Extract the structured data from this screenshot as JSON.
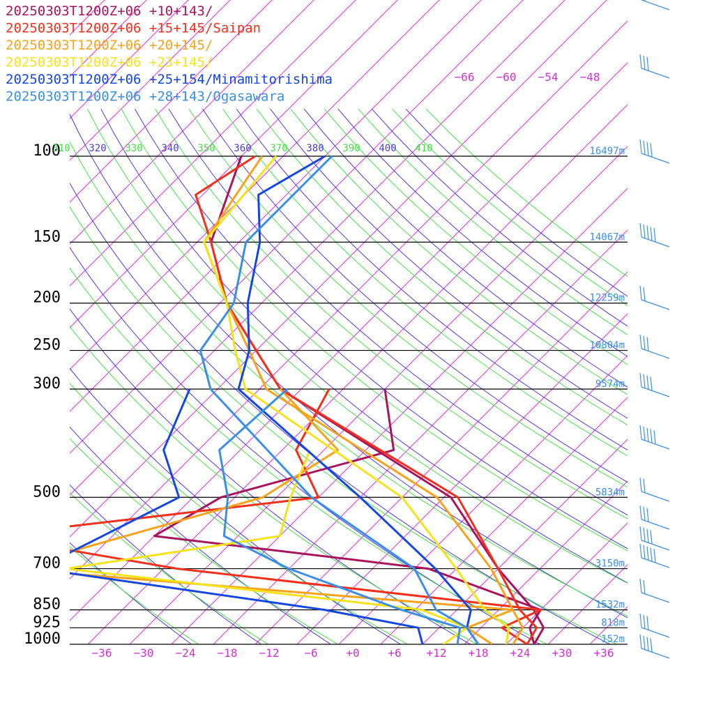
{
  "chart_data": {
    "type": "line",
    "title": "",
    "xlabel": "",
    "ylabel": "",
    "pressure_levels": [
      100,
      150,
      200,
      250,
      300,
      500,
      700,
      850,
      925,
      1000
    ],
    "pressure_labels": [
      "100",
      "150",
      "200",
      "250",
      "300",
      "500",
      "700",
      "850",
      "925",
      "1000"
    ],
    "height_labels": [
      "16497m",
      "14067m",
      "12259m",
      "10804m",
      "9574m",
      "5834m",
      "3150m",
      "1532m",
      "818m",
      "152m"
    ],
    "height_levels": [
      100,
      150,
      200,
      250,
      300,
      500,
      700,
      850,
      925,
      1000
    ],
    "temp_ticks": [
      -36,
      -30,
      -24,
      -18,
      -12,
      -6,
      0,
      6,
      12,
      18,
      24,
      30,
      36
    ],
    "temp_tick_labels": [
      "−36",
      "−30",
      "−24",
      "−18",
      "−12",
      "−6",
      "+0",
      "+6",
      "+12",
      "+18",
      "+24",
      "+30",
      "+36"
    ],
    "upper_temp_labels": [
      "−66",
      "−60",
      "−54",
      "−48"
    ],
    "theta_labels": [
      "310",
      "320",
      "330",
      "340",
      "350",
      "360",
      "370",
      "380",
      "390",
      "400",
      "410"
    ],
    "xlim": [
      -40,
      40
    ],
    "series": [
      {
        "name": "20250303T1200Z+06 +10+143/",
        "color": "#a8135e",
        "temperature": [
          [
            100,
            -86
          ],
          [
            150,
            -78
          ],
          [
            200,
            -67
          ],
          [
            250,
            -56
          ],
          [
            300,
            -47
          ],
          [
            500,
            -7
          ],
          [
            700,
            10
          ],
          [
            850,
            21
          ],
          [
            925,
            25
          ],
          [
            1000,
            26
          ]
        ],
        "dewpoint": [
          [
            300,
            -32
          ],
          [
            400,
            -22
          ],
          [
            500,
            -40
          ],
          [
            600,
            -44
          ],
          [
            700,
            0
          ],
          [
            850,
            22
          ],
          [
            925,
            23
          ],
          [
            1000,
            26
          ]
        ]
      },
      {
        "name": "20250303T1200Z+06 +15+145/Saipan",
        "color": "#f0301a",
        "temperature": [
          [
            100,
            -84
          ],
          [
            120,
            -87
          ],
          [
            150,
            -78
          ],
          [
            200,
            -67
          ],
          [
            250,
            -56
          ],
          [
            300,
            -47
          ],
          [
            500,
            -6
          ],
          [
            700,
            10
          ],
          [
            850,
            19
          ],
          [
            925,
            24
          ],
          [
            1000,
            25
          ]
        ],
        "dewpoint": [
          [
            300,
            -40
          ],
          [
            400,
            -36
          ],
          [
            500,
            -26
          ],
          [
            600,
            -68
          ],
          [
            700,
            -36
          ],
          [
            850,
            22
          ],
          [
            925,
            19
          ],
          [
            1000,
            25
          ]
        ]
      },
      {
        "name": "20250303T1200Z+06 +20+145/",
        "color": "#f6a21a",
        "temperature": [
          [
            100,
            -83
          ],
          [
            150,
            -79
          ],
          [
            200,
            -67
          ],
          [
            250,
            -57
          ],
          [
            300,
            -49
          ],
          [
            500,
            -9
          ],
          [
            700,
            9
          ],
          [
            850,
            18
          ],
          [
            925,
            22
          ],
          [
            1000,
            23
          ]
        ],
        "dewpoint": [
          [
            300,
            -47
          ],
          [
            400,
            -30
          ],
          [
            500,
            -34
          ],
          [
            700,
            -60
          ],
          [
            850,
            18
          ],
          [
            925,
            14
          ],
          [
            1000,
            20
          ]
        ]
      },
      {
        "name": "20250303T1200Z+06 +23+145/",
        "color": "#f4e21a",
        "temperature": [
          [
            100,
            -81
          ],
          [
            150,
            -79
          ],
          [
            200,
            -67
          ],
          [
            250,
            -59
          ],
          [
            300,
            -52
          ],
          [
            500,
            -14
          ],
          [
            700,
            4
          ],
          [
            850,
            14
          ],
          [
            925,
            20
          ],
          [
            1000,
            22
          ]
        ],
        "dewpoint": [
          [
            400,
            -34
          ],
          [
            500,
            -30
          ],
          [
            600,
            -26
          ],
          [
            700,
            -52
          ],
          [
            850,
            5
          ],
          [
            925,
            14
          ],
          [
            1000,
            13
          ]
        ]
      },
      {
        "name": "20250303T1200Z+06 +25+154/Minamitorishima",
        "color": "#1446e0",
        "temperature": [
          [
            100,
            -74
          ],
          [
            120,
            -78
          ],
          [
            150,
            -71
          ],
          [
            200,
            -64
          ],
          [
            250,
            -57
          ],
          [
            300,
            -53
          ],
          [
            500,
            -20
          ],
          [
            700,
            1
          ],
          [
            850,
            12
          ],
          [
            925,
            14
          ],
          [
            1000,
            18
          ]
        ],
        "dewpoint": [
          [
            300,
            -60
          ],
          [
            400,
            -55
          ],
          [
            500,
            -46
          ],
          [
            700,
            -56
          ],
          [
            850,
            -9
          ],
          [
            925,
            7
          ],
          [
            1000,
            10
          ]
        ]
      },
      {
        "name": "20250303T1200Z+06 +28+143/Ogasawara",
        "color": "#3a8ee6",
        "temperature": [
          [
            100,
            -73
          ],
          [
            150,
            -73
          ],
          [
            200,
            -66
          ],
          [
            250,
            -64
          ],
          [
            300,
            -57
          ],
          [
            500,
            -27
          ],
          [
            700,
            -2
          ],
          [
            850,
            7
          ],
          [
            925,
            14
          ],
          [
            1000,
            18
          ]
        ],
        "dewpoint": [
          [
            300,
            -46
          ],
          [
            400,
            -47
          ],
          [
            500,
            -39
          ],
          [
            600,
            -34
          ],
          [
            700,
            -20
          ],
          [
            850,
            2
          ],
          [
            925,
            13
          ],
          [
            1000,
            15
          ]
        ]
      }
    ]
  }
}
